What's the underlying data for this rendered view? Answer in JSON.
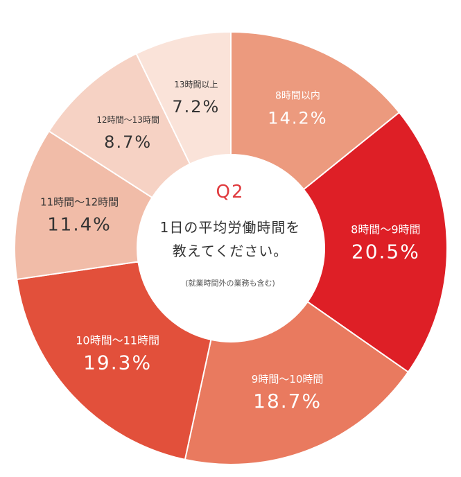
{
  "chart_data": {
    "type": "pie",
    "categories": [
      "8時間以内",
      "8時間～9時間",
      "9時間～10時間",
      "10時間～11時間",
      "11時間～12時間",
      "12時間～13時間",
      "13時間以上"
    ],
    "values": [
      14.2,
      20.5,
      18.7,
      19.3,
      11.4,
      8.7,
      7.2
    ],
    "value_labels": [
      "14.2%",
      "20.5%",
      "18.7%",
      "19.3%",
      "11.4%",
      "8.7%",
      "7.2%"
    ],
    "colors": [
      "#ec9a7e",
      "#de1f26",
      "#e97a5f",
      "#e2503b",
      "#f1bca8",
      "#f6d2c4",
      "#fae3d9"
    ],
    "label_colors": [
      "#ffffff",
      "#ffffff",
      "#ffffff",
      "#ffffff",
      "#333333",
      "#333333",
      "#333333"
    ],
    "start_position": "top",
    "direction": "clockwise",
    "hole": true
  },
  "center": {
    "q_label": "Q2",
    "question_line1": "1日の平均労働時間を",
    "question_line2": "教えてください。",
    "note": "(就業時間外の業務も含む)"
  },
  "colors": {
    "accent": "#e03a3e",
    "center_fill": "#ffffff",
    "segment_separator": "#ffffff"
  }
}
